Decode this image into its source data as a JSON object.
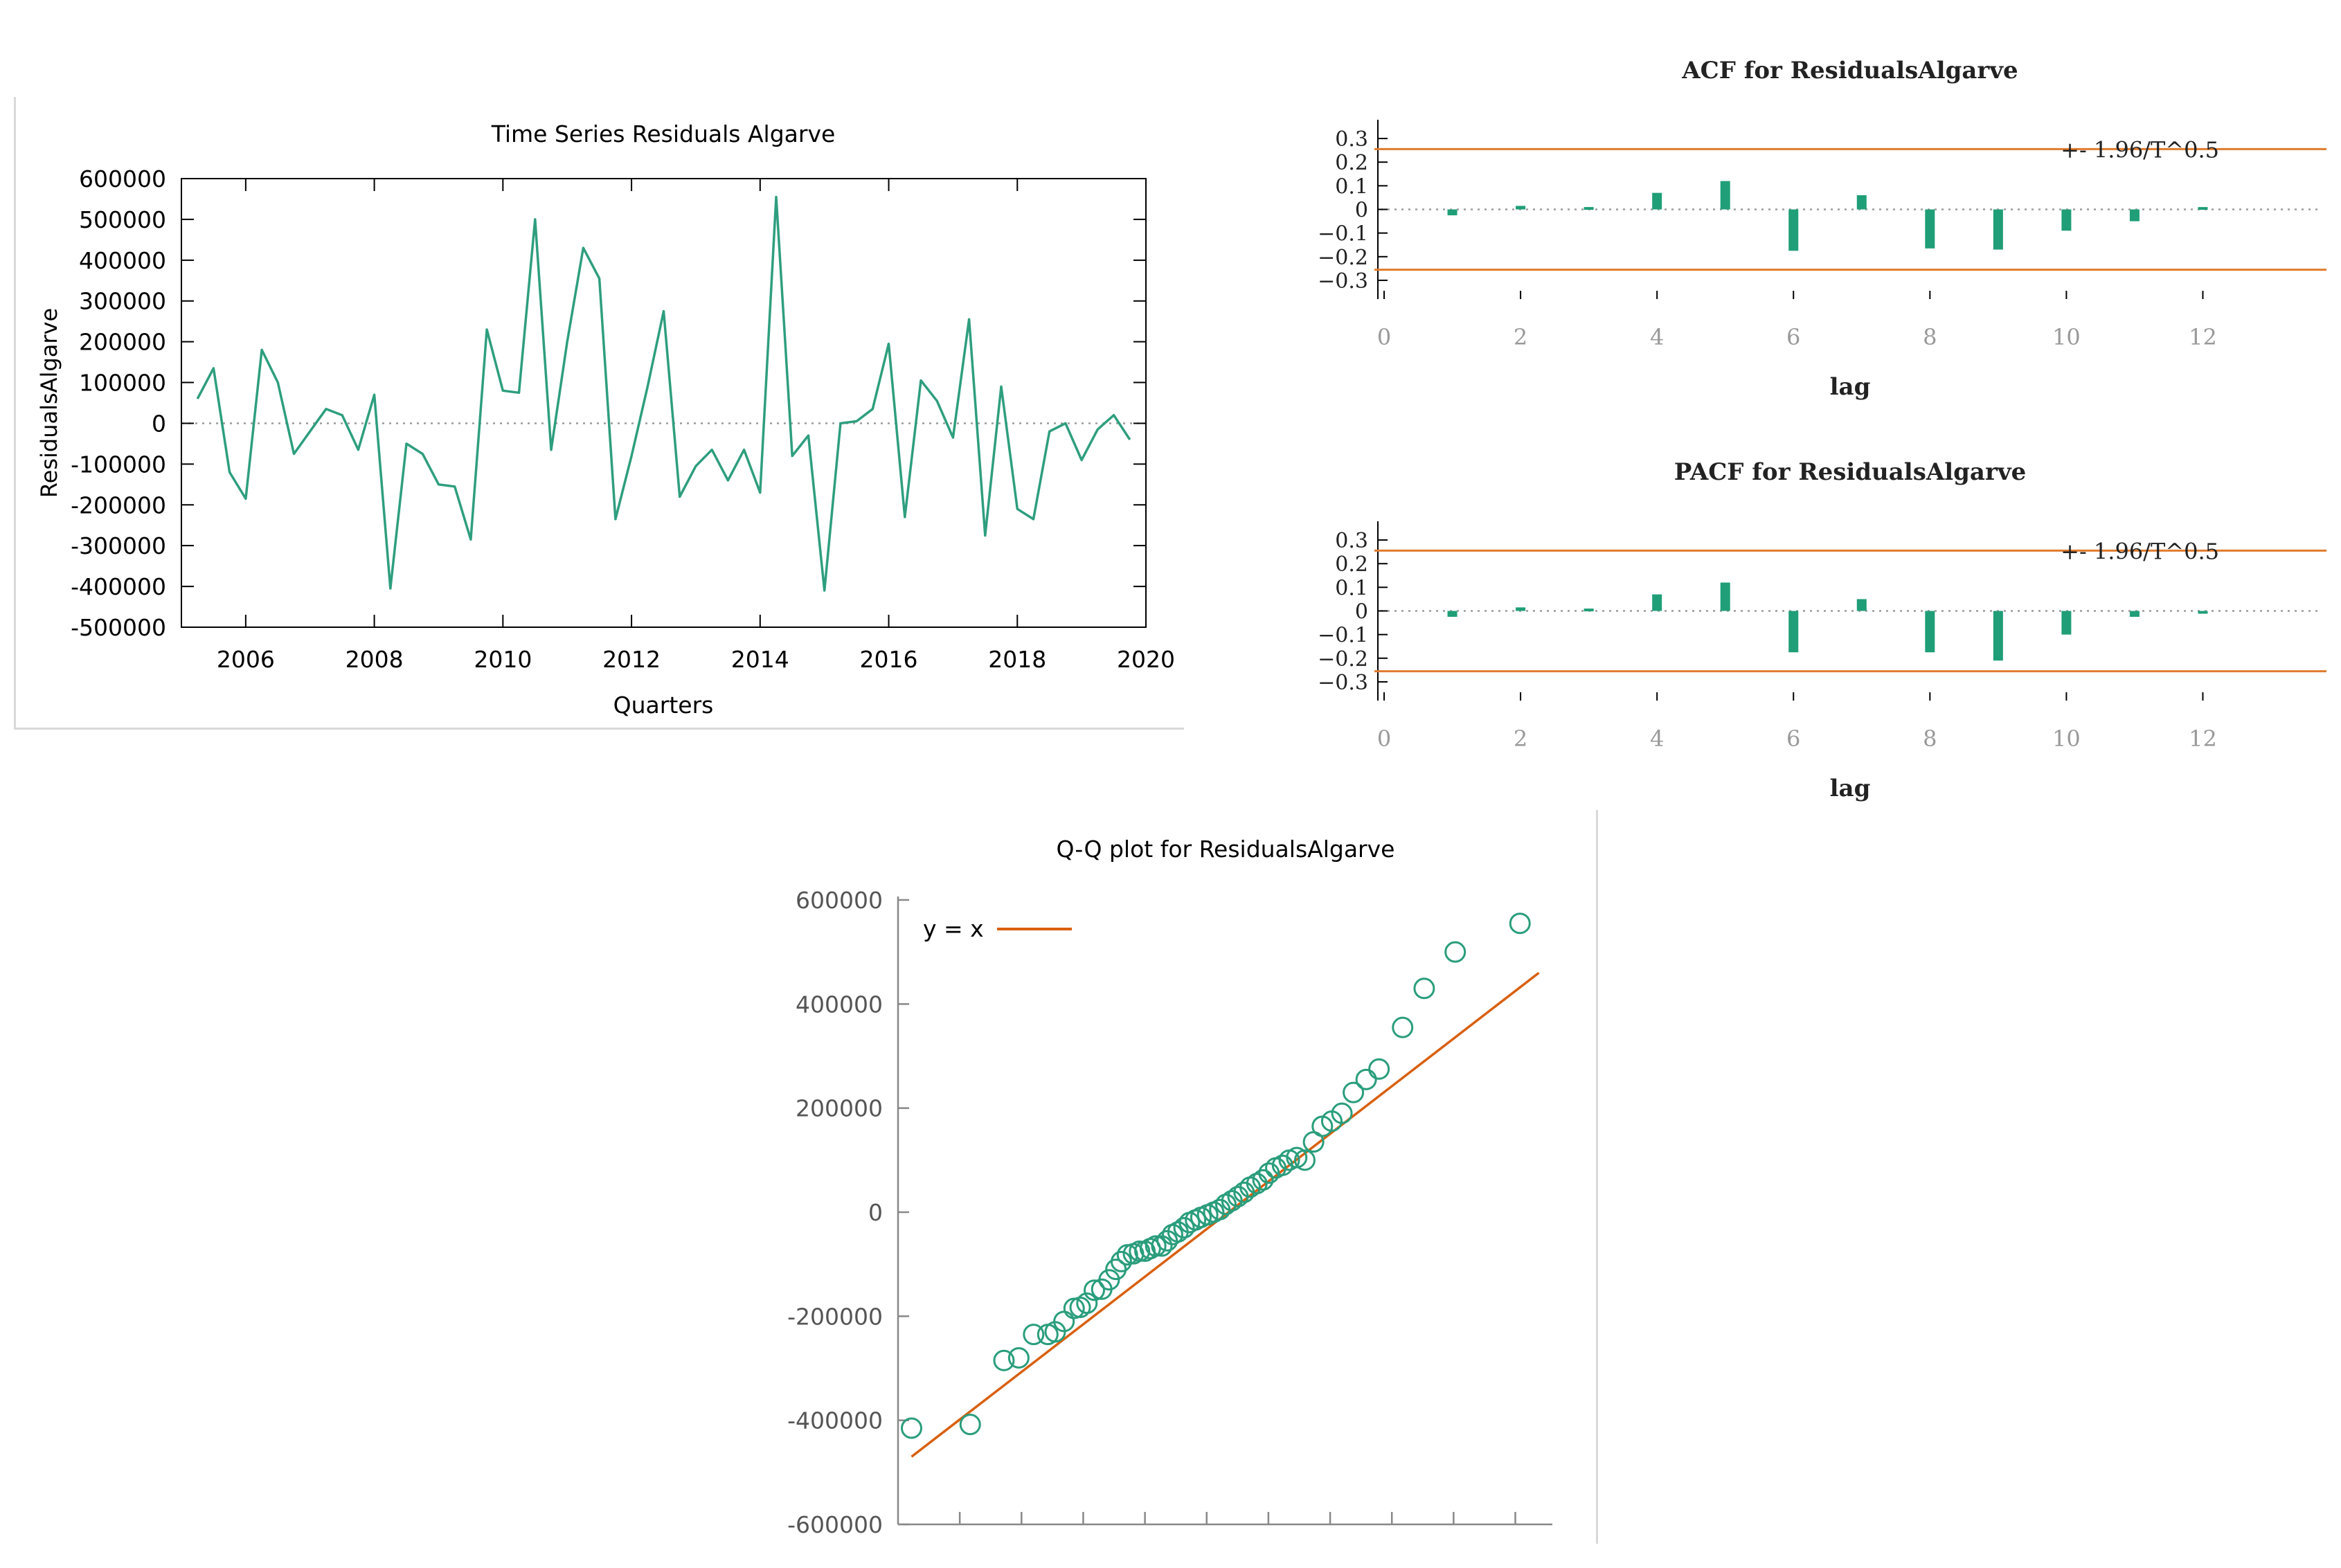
{
  "chart_data": [
    {
      "id": "ts",
      "type": "line",
      "title": "Time Series Residuals Algarve",
      "xlabel": "Quarters",
      "ylabel": "ResidualsAlgarve",
      "xlim": [
        2005,
        2020
      ],
      "ylim": [
        -500000,
        600000
      ],
      "xticks": [
        2006,
        2008,
        2010,
        2012,
        2014,
        2016,
        2018,
        2020
      ],
      "yticks": [
        600000,
        500000,
        400000,
        300000,
        200000,
        100000,
        0,
        -100000,
        -200000,
        -300000,
        -400000,
        -500000
      ],
      "zero_line": true,
      "colors": {
        "line": "#2e9e7e",
        "axis": "#000000",
        "zero": "#9a9a9a"
      },
      "series": [
        {
          "name": "ResidualsAlgarve",
          "x": [
            2005.25,
            2005.5,
            2005.75,
            2006.0,
            2006.25,
            2006.5,
            2006.75,
            2007.0,
            2007.25,
            2007.5,
            2007.75,
            2008.0,
            2008.25,
            2008.5,
            2008.75,
            2009.0,
            2009.25,
            2009.5,
            2009.75,
            2010.0,
            2010.25,
            2010.5,
            2010.75,
            2011.0,
            2011.25,
            2011.5,
            2011.75,
            2012.0,
            2012.25,
            2012.5,
            2012.75,
            2013.0,
            2013.25,
            2013.5,
            2013.75,
            2014.0,
            2014.25,
            2014.5,
            2014.75,
            2015.0,
            2015.25,
            2015.5,
            2015.75,
            2016.0,
            2016.25,
            2016.5,
            2016.75,
            2017.0,
            2017.25,
            2017.5,
            2017.75,
            2018.0,
            2018.25,
            2018.5,
            2018.75,
            2019.0,
            2019.25,
            2019.5,
            2019.75
          ],
          "values": [
            60000,
            135000,
            -120000,
            -185000,
            180000,
            100000,
            -75000,
            -20000,
            35000,
            20000,
            -65000,
            70000,
            -405000,
            -50000,
            -75000,
            -150000,
            -155000,
            -285000,
            230000,
            80000,
            75000,
            500000,
            -65000,
            200000,
            430000,
            355000,
            -235000,
            -80000,
            90000,
            275000,
            -180000,
            -105000,
            -65000,
            -140000,
            -65000,
            -170000,
            555000,
            -80000,
            -30000,
            -410000,
            0,
            5000,
            35000,
            195000,
            -230000,
            105000,
            55000,
            -35000,
            255000,
            -275000,
            90000,
            -210000,
            -235000,
            -20000,
            0,
            -90000,
            -15000,
            20000,
            -40000
          ]
        }
      ]
    },
    {
      "id": "acf",
      "type": "bar",
      "title": "ACF for ResidualsAlgarve",
      "xlabel": "lag",
      "ylabel": "",
      "xlim": [
        0,
        13
      ],
      "ylim": [
        -0.35,
        0.35
      ],
      "xticks": [
        0,
        2,
        4,
        6,
        8,
        10,
        12
      ],
      "yticks": [
        0.3,
        0.2,
        0.1,
        0,
        -0.1,
        -0.2,
        -0.3
      ],
      "bound": 0.255,
      "bound_label": "+- 1.96/T^0.5",
      "colors": {
        "bar": "#1f9e77",
        "bound": "#e07b2e",
        "axis": "#000000",
        "zero": "#9a9a9a"
      },
      "lags": [
        1,
        2,
        3,
        4,
        5,
        6,
        7,
        8,
        9,
        10,
        11,
        12
      ],
      "values": [
        -0.025,
        0.015,
        0.01,
        0.07,
        0.12,
        -0.175,
        0.06,
        -0.165,
        -0.17,
        -0.09,
        -0.05,
        0.01
      ]
    },
    {
      "id": "pacf",
      "type": "bar",
      "title": "PACF for ResidualsAlgarve",
      "xlabel": "lag",
      "ylabel": "",
      "xlim": [
        0,
        13
      ],
      "ylim": [
        -0.35,
        0.35
      ],
      "xticks": [
        0,
        2,
        4,
        6,
        8,
        10,
        12
      ],
      "yticks": [
        0.3,
        0.2,
        0.1,
        0,
        -0.1,
        -0.2,
        -0.3
      ],
      "bound": 0.255,
      "bound_label": "+- 1.96/T^0.5",
      "colors": {
        "bar": "#1f9e77",
        "bound": "#e07b2e",
        "axis": "#000000",
        "zero": "#9a9a9a"
      },
      "lags": [
        1,
        2,
        3,
        4,
        5,
        6,
        7,
        8,
        9,
        10,
        11,
        12
      ],
      "values": [
        -0.025,
        0.015,
        0.01,
        0.07,
        0.12,
        -0.175,
        0.05,
        -0.175,
        -0.21,
        -0.1,
        -0.025,
        -0.005
      ]
    },
    {
      "id": "qq",
      "type": "scatter",
      "title": "Q-Q plot for ResidualsAlgarve",
      "xlabel": "",
      "ylabel": "",
      "ylim": [
        -600000,
        600000
      ],
      "yticks": [
        600000,
        400000,
        200000,
        0,
        -200000,
        -400000,
        -600000
      ],
      "legend": "y = x",
      "legend_position": "top-left",
      "colors": {
        "points": "#2a9d7c",
        "line": "#d95f0e",
        "axis": "#888888",
        "text": "#555555"
      },
      "line": {
        "from": [
          -470000,
          -470000
        ],
        "to": [
          460000,
          460000
        ]
      },
      "points": [
        [
          -470000,
          -415000
        ],
        [
          -383000,
          -408000
        ],
        [
          -333000,
          -285000
        ],
        [
          -311000,
          -280000
        ],
        [
          -289000,
          -235000
        ],
        [
          -268000,
          -235000
        ],
        [
          -257000,
          -230000
        ],
        [
          -244000,
          -210000
        ],
        [
          -229000,
          -185000
        ],
        [
          -220000,
          -183000
        ],
        [
          -210000,
          -175000
        ],
        [
          -199000,
          -150000
        ],
        [
          -188000,
          -148000
        ],
        [
          -177000,
          -130000
        ],
        [
          -167000,
          -110000
        ],
        [
          -159000,
          -95000
        ],
        [
          -150000,
          -82000
        ],
        [
          -141000,
          -80000
        ],
        [
          -132000,
          -75000
        ],
        [
          -124000,
          -75000
        ],
        [
          -116000,
          -70000
        ],
        [
          -108000,
          -65000
        ],
        [
          -99000,
          -65000
        ],
        [
          -91000,
          -55000
        ],
        [
          -83000,
          -43000
        ],
        [
          -75000,
          -38000
        ],
        [
          -66000,
          -30000
        ],
        [
          -58000,
          -20000
        ],
        [
          -49000,
          -15000
        ],
        [
          -41000,
          -10000
        ],
        [
          -31000,
          -5000
        ],
        [
          -22000,
          0
        ],
        [
          -13000,
          5000
        ],
        [
          -4000,
          15000
        ],
        [
          5000,
          22000
        ],
        [
          14000,
          30000
        ],
        [
          23000,
          38000
        ],
        [
          32000,
          48000
        ],
        [
          42000,
          55000
        ],
        [
          51000,
          62000
        ],
        [
          60000,
          75000
        ],
        [
          70000,
          85000
        ],
        [
          80000,
          90000
        ],
        [
          90000,
          100000
        ],
        [
          101000,
          105000
        ],
        [
          113000,
          100000
        ],
        [
          126000,
          135000
        ],
        [
          139000,
          165000
        ],
        [
          153000,
          175000
        ],
        [
          168000,
          190000
        ],
        [
          185000,
          230000
        ],
        [
          204000,
          255000
        ],
        [
          223000,
          275000
        ],
        [
          258000,
          355000
        ],
        [
          290000,
          430000
        ],
        [
          336000,
          500000
        ],
        [
          432000,
          555000
        ]
      ]
    }
  ]
}
